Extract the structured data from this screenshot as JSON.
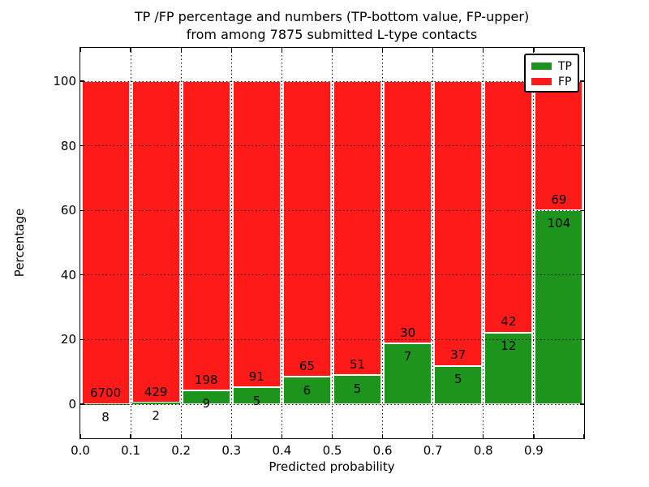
{
  "colors": {
    "tp": "#1d951d",
    "fp": "#ff1a1a",
    "grid": "#000000",
    "frame": "#000000",
    "background": "#ffffff"
  },
  "chart_data": {
    "type": "bar",
    "stacked": true,
    "title": "TP /FP percentage and numbers (TP-bottom value, FP-upper)\nfrom among 7875 submitted L-type contacts",
    "title_lines": [
      "TP /FP percentage and numbers (TP-bottom value, FP-upper)",
      "from among 7875 submitted L-type contacts"
    ],
    "xlabel": "Predicted probability",
    "ylabel": "Percentage",
    "xlim": [
      0.0,
      1.0
    ],
    "ylim": [
      -10.5,
      110.5
    ],
    "x_tick_labels": [
      "0.0",
      "0.1",
      "0.2",
      "0.3",
      "0.4",
      "0.5",
      "0.6",
      "0.7",
      "0.8",
      "0.9"
    ],
    "y_tick_values": [
      0,
      20,
      40,
      60,
      80,
      100
    ],
    "grid": {
      "style": "dotted",
      "color": "#000000",
      "axes": "both"
    },
    "bin_width": 0.1,
    "bin_starts": [
      0.0,
      0.1,
      0.2,
      0.3,
      0.4,
      0.5,
      0.6,
      0.7,
      0.8,
      0.9
    ],
    "series": [
      {
        "name": "TP",
        "color": "#1d951d",
        "counts": [
          8,
          2,
          9,
          5,
          6,
          5,
          7,
          5,
          12,
          104
        ]
      },
      {
        "name": "FP",
        "color": "#ff1a1a",
        "counts": [
          6700,
          429,
          198,
          91,
          65,
          51,
          30,
          37,
          42,
          69
        ]
      }
    ],
    "value_semantics": "green bar height = TP/(TP+FP)*100 per bin; red fills up to 100%; numbers printed are raw counts (FP above boundary, TP below)",
    "total_contacts": 7875,
    "legend": {
      "position": "upper-right",
      "entries": [
        {
          "label": "TP",
          "color": "#1d951d"
        },
        {
          "label": "FP",
          "color": "#ff1a1a"
        }
      ]
    }
  }
}
